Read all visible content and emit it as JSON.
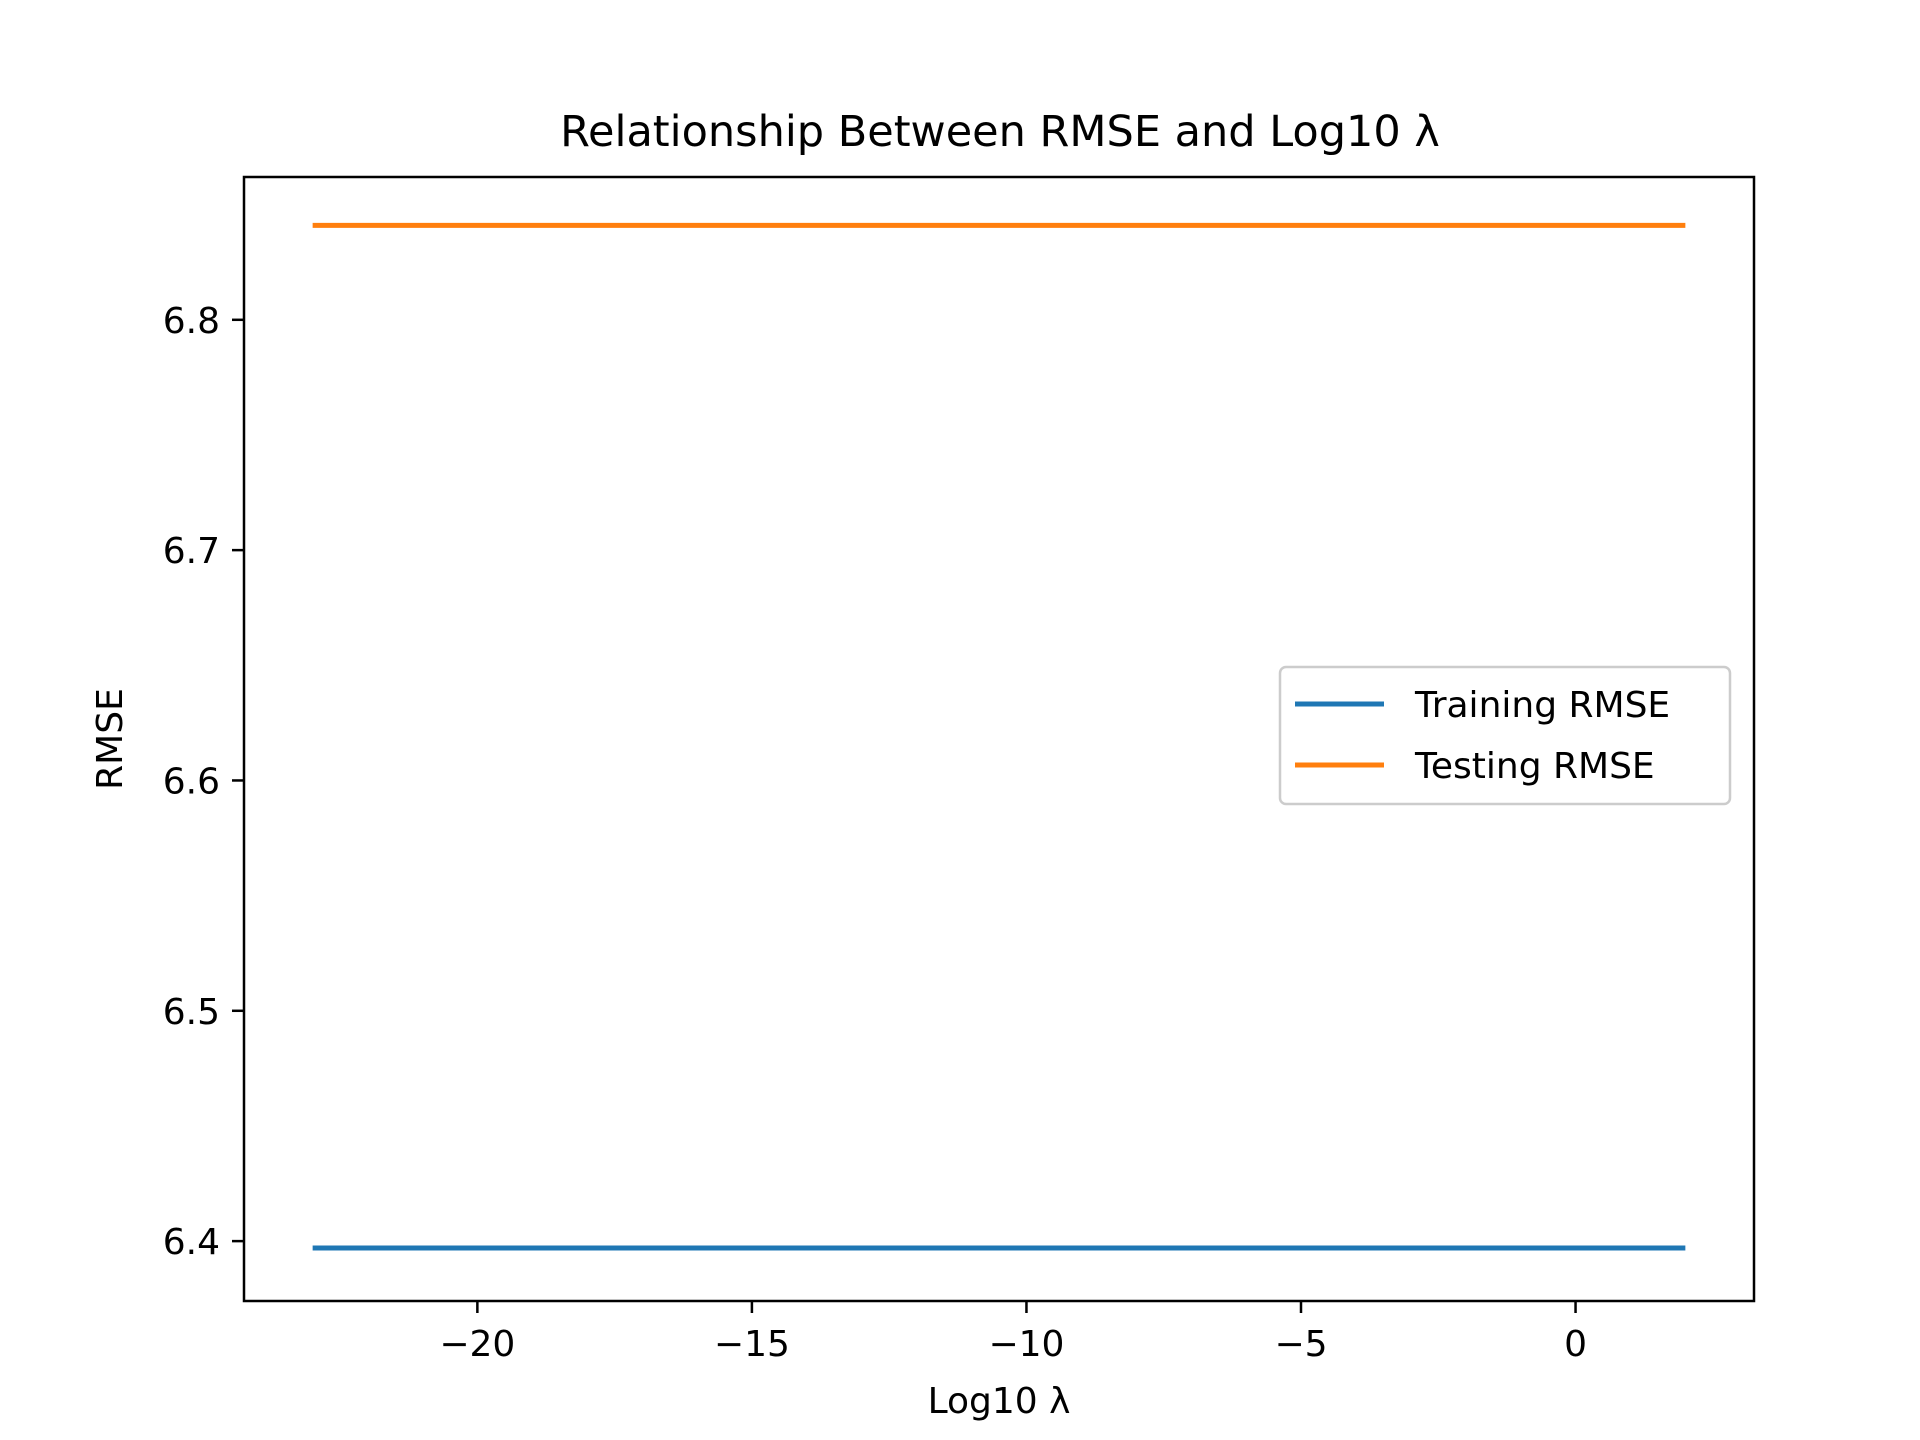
{
  "chart_data": {
    "type": "line",
    "title": "Relationship Between RMSE and Log10 λ",
    "xlabel": "Log10 λ",
    "ylabel": "RMSE",
    "xlim": [
      -24.25,
      3.25
    ],
    "ylim": [
      6.374,
      6.862
    ],
    "xticks": [
      -20,
      -15,
      -10,
      -5,
      0
    ],
    "xtick_labels": [
      "−20",
      "−15",
      "−10",
      "−5",
      "0"
    ],
    "yticks": [
      6.4,
      6.5,
      6.6,
      6.7,
      6.8
    ],
    "ytick_labels": [
      "6.4",
      "6.5",
      "6.6",
      "6.7",
      "6.8"
    ],
    "grid": false,
    "legend_position": "center-right",
    "series": [
      {
        "name": "Training RMSE",
        "color": "#1f77b4",
        "x": [
          -23,
          -20,
          -15,
          -10,
          -5,
          0,
          2
        ],
        "y": [
          6.397,
          6.397,
          6.397,
          6.397,
          6.397,
          6.397,
          6.397
        ]
      },
      {
        "name": "Testing RMSE",
        "color": "#ff7f0e",
        "x": [
          -23,
          -20,
          -15,
          -10,
          -5,
          0,
          2
        ],
        "y": [
          6.841,
          6.841,
          6.841,
          6.841,
          6.841,
          6.841,
          6.841
        ]
      }
    ]
  }
}
